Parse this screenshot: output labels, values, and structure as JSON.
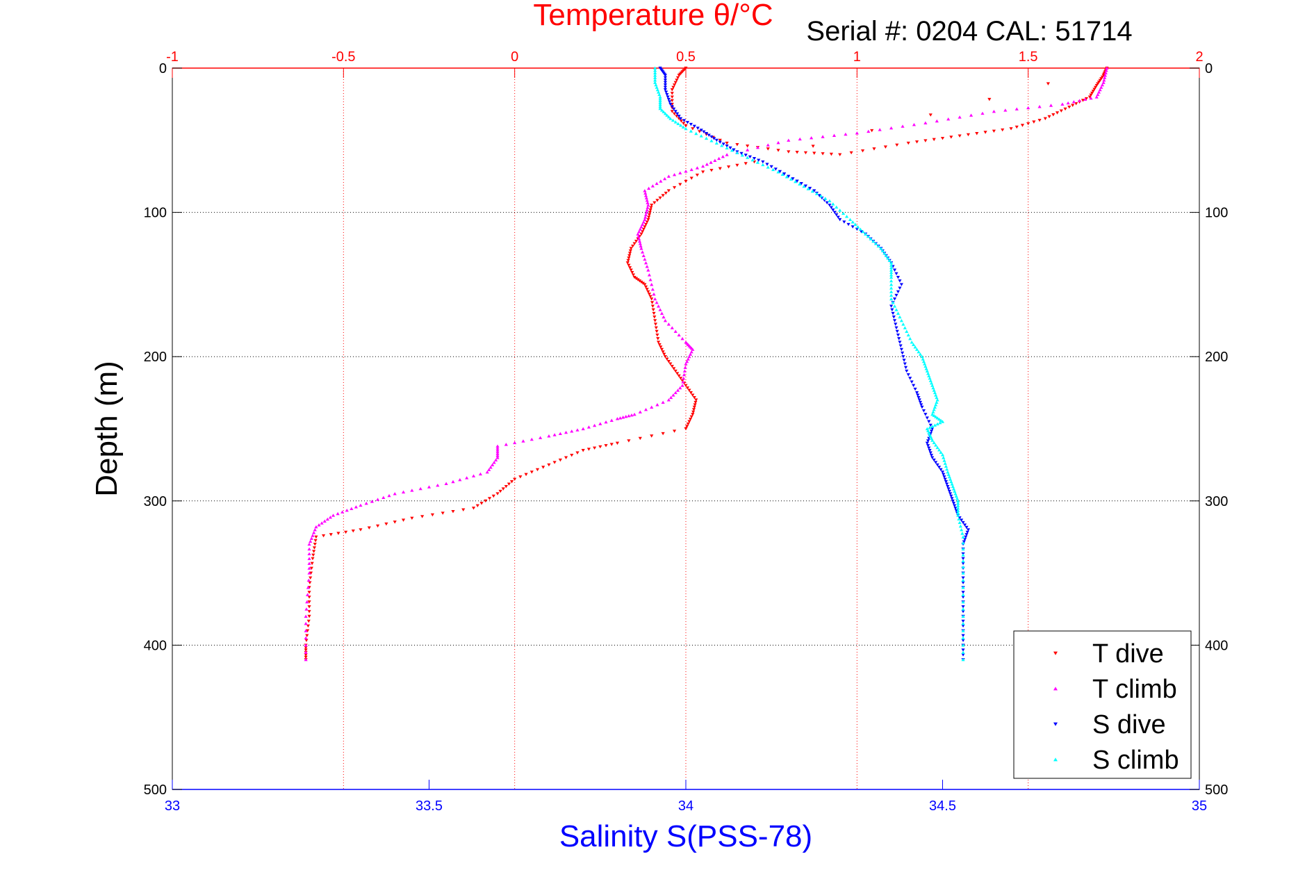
{
  "chart_data": {
    "type": "scatter",
    "title": "Temperature θ/°C",
    "subtitle": "Serial #: 0204   CAL: 51714",
    "xlabel": "Salinity S(PSS-78)",
    "ylabel": "Depth (m)",
    "x_top": {
      "label": "Temperature θ/°C",
      "lim": [
        -1,
        2
      ],
      "ticks": [
        -1,
        -0.5,
        0,
        0.5,
        1,
        1.5,
        2
      ],
      "tick_labels": [
        "-1",
        "-0.5",
        "0",
        "0.5",
        "1",
        "1.5",
        "2"
      ],
      "color": "#ff0000"
    },
    "x_bottom": {
      "label": "Salinity S(PSS-78)",
      "lim": [
        33,
        35
      ],
      "ticks": [
        33,
        33.5,
        34,
        34.5,
        35
      ],
      "tick_labels": [
        "33",
        "33.5",
        "34",
        "34.5",
        "35"
      ],
      "color": "#0000ff"
    },
    "y": {
      "lim": [
        0,
        500
      ],
      "reversed": true,
      "ticks": [
        0,
        100,
        200,
        300,
        400,
        500
      ],
      "tick_labels": [
        "0",
        "100",
        "200",
        "300",
        "400",
        "500"
      ]
    },
    "grid": true,
    "legend_position": "bottom-right",
    "series": [
      {
        "name": "T dive",
        "axis": "temperature",
        "color": "#ff0000",
        "marker": "triangle-down",
        "points": [
          [
            0.5,
            0
          ],
          [
            0.48,
            5
          ],
          [
            0.46,
            15
          ],
          [
            0.46,
            30
          ],
          [
            0.5,
            40
          ],
          [
            0.62,
            52
          ],
          [
            0.8,
            58
          ],
          [
            0.95,
            60
          ],
          [
            1.15,
            52
          ],
          [
            1.3,
            47
          ],
          [
            1.45,
            42
          ],
          [
            1.55,
            35
          ],
          [
            1.62,
            27
          ],
          [
            1.68,
            20
          ],
          [
            1.7,
            12
          ],
          [
            1.72,
            5
          ],
          [
            1.73,
            0
          ],
          [
            0.7,
            65
          ],
          [
            0.55,
            72
          ],
          [
            0.45,
            85
          ],
          [
            0.4,
            95
          ],
          [
            0.39,
            105
          ],
          [
            0.37,
            115
          ],
          [
            0.34,
            125
          ],
          [
            0.33,
            135
          ],
          [
            0.35,
            145
          ],
          [
            0.38,
            150
          ],
          [
            0.4,
            160
          ],
          [
            0.41,
            175
          ],
          [
            0.42,
            190
          ],
          [
            0.44,
            200
          ],
          [
            0.47,
            210
          ],
          [
            0.5,
            220
          ],
          [
            0.53,
            230
          ],
          [
            0.52,
            240
          ],
          [
            0.5,
            250
          ],
          [
            0.3,
            260
          ],
          [
            0.2,
            265
          ],
          [
            0.1,
            275
          ],
          [
            0,
            285
          ],
          [
            -0.05,
            295
          ],
          [
            -0.12,
            305
          ],
          [
            -0.3,
            312
          ],
          [
            -0.45,
            320
          ],
          [
            -0.58,
            325
          ],
          [
            -0.59,
            340
          ],
          [
            -0.6,
            360
          ],
          [
            -0.6,
            380
          ],
          [
            -0.61,
            400
          ],
          [
            -0.61,
            410
          ]
        ]
      },
      {
        "name": "T climb",
        "axis": "temperature",
        "color": "#ff00ff",
        "marker": "triangle-up",
        "points": [
          [
            1.73,
            0
          ],
          [
            1.72,
            10
          ],
          [
            1.7,
            20
          ],
          [
            1.6,
            25
          ],
          [
            1.4,
            30
          ],
          [
            1.2,
            38
          ],
          [
            1.0,
            45
          ],
          [
            0.8,
            50
          ],
          [
            0.62,
            60
          ],
          [
            0.55,
            68
          ],
          [
            0.45,
            75
          ],
          [
            0.38,
            85
          ],
          [
            0.39,
            95
          ],
          [
            0.38,
            105
          ],
          [
            0.36,
            115
          ],
          [
            0.37,
            125
          ],
          [
            0.39,
            140
          ],
          [
            0.41,
            160
          ],
          [
            0.44,
            175
          ],
          [
            0.5,
            190
          ],
          [
            0.52,
            195
          ],
          [
            0.5,
            205
          ],
          [
            0.49,
            220
          ],
          [
            0.45,
            230
          ],
          [
            0.35,
            240
          ],
          [
            0.3,
            243
          ],
          [
            0.2,
            250
          ],
          [
            0.1,
            255
          ],
          [
            -0.05,
            262
          ],
          [
            -0.05,
            270
          ],
          [
            -0.08,
            280
          ],
          [
            -0.2,
            288
          ],
          [
            -0.35,
            295
          ],
          [
            -0.45,
            303
          ],
          [
            -0.53,
            310
          ],
          [
            -0.58,
            318
          ],
          [
            -0.6,
            330
          ],
          [
            -0.6,
            350
          ],
          [
            -0.61,
            380
          ],
          [
            -0.61,
            410
          ]
        ]
      },
      {
        "name": "S dive",
        "axis": "salinity",
        "color": "#0000ff",
        "marker": "triangle-down",
        "points": [
          [
            33.95,
            0
          ],
          [
            33.96,
            5
          ],
          [
            33.96,
            15
          ],
          [
            33.97,
            25
          ],
          [
            33.99,
            35
          ],
          [
            34.03,
            43
          ],
          [
            34.06,
            50
          ],
          [
            34.1,
            58
          ],
          [
            34.15,
            65
          ],
          [
            34.2,
            75
          ],
          [
            34.25,
            85
          ],
          [
            34.28,
            95
          ],
          [
            34.3,
            105
          ],
          [
            34.35,
            115
          ],
          [
            34.38,
            125
          ],
          [
            34.4,
            135
          ],
          [
            34.42,
            150
          ],
          [
            34.4,
            165
          ],
          [
            34.41,
            180
          ],
          [
            34.42,
            195
          ],
          [
            34.43,
            210
          ],
          [
            34.45,
            225
          ],
          [
            34.46,
            235
          ],
          [
            34.48,
            250
          ],
          [
            34.47,
            260
          ],
          [
            34.48,
            270
          ],
          [
            34.5,
            280
          ],
          [
            34.51,
            290
          ],
          [
            34.52,
            300
          ],
          [
            34.53,
            310
          ],
          [
            34.55,
            320
          ],
          [
            34.54,
            330
          ],
          [
            34.54,
            350
          ],
          [
            34.54,
            370
          ],
          [
            34.54,
            390
          ],
          [
            34.54,
            410
          ]
        ]
      },
      {
        "name": "S climb",
        "axis": "salinity",
        "color": "#00ffff",
        "marker": "triangle-up",
        "points": [
          [
            33.94,
            0
          ],
          [
            33.94,
            10
          ],
          [
            33.95,
            20
          ],
          [
            33.95,
            28
          ],
          [
            33.97,
            35
          ],
          [
            34.0,
            42
          ],
          [
            34.06,
            52
          ],
          [
            34.12,
            62
          ],
          [
            34.18,
            72
          ],
          [
            34.23,
            82
          ],
          [
            34.28,
            92
          ],
          [
            34.32,
            105
          ],
          [
            34.35,
            115
          ],
          [
            34.38,
            125
          ],
          [
            34.4,
            135
          ],
          [
            34.4,
            145
          ],
          [
            34.4,
            160
          ],
          [
            34.42,
            175
          ],
          [
            34.44,
            190
          ],
          [
            34.46,
            200
          ],
          [
            34.47,
            210
          ],
          [
            34.48,
            220
          ],
          [
            34.49,
            230
          ],
          [
            34.48,
            240
          ],
          [
            34.5,
            245
          ],
          [
            34.47,
            250
          ],
          [
            34.48,
            258
          ],
          [
            34.5,
            268
          ],
          [
            34.51,
            280
          ],
          [
            34.52,
            290
          ],
          [
            34.53,
            300
          ],
          [
            34.53,
            310
          ],
          [
            34.54,
            325
          ],
          [
            34.54,
            350
          ],
          [
            34.54,
            380
          ],
          [
            34.54,
            410
          ]
        ]
      }
    ]
  }
}
